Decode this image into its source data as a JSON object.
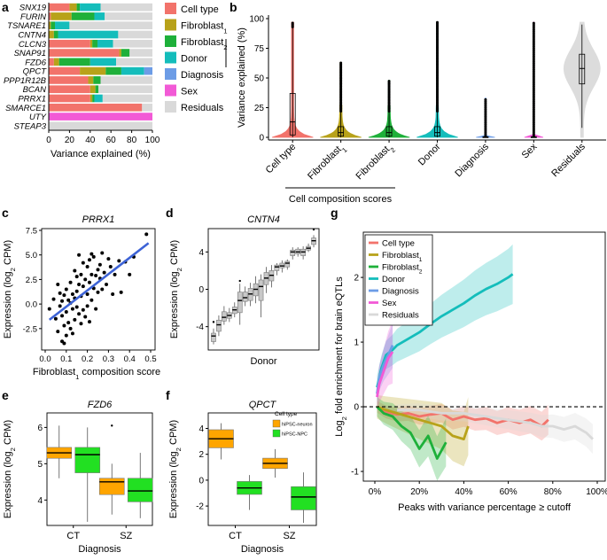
{
  "colors": {
    "cell_type": "#F2736B",
    "fibroblast1": "#B8A21A",
    "fibroblast2": "#1EB03A",
    "donor": "#14BDBB",
    "diagnosis": "#6C9CE6",
    "sex": "#F25AD6",
    "residuals": "#D9D9D9",
    "regression": "#3D63D6",
    "orange": "#FFA500",
    "green": "#22E022",
    "box_grey": "#C8C8C8"
  },
  "panel_labels": {
    "a": "a",
    "b": "b",
    "c": "c",
    "d": "d",
    "e": "e",
    "f": "f",
    "g": "g"
  },
  "chart_data": [
    {
      "id": "a",
      "type": "bar",
      "stacked": true,
      "orientation": "horizontal",
      "xlabel": "Variance explained (%)",
      "xlim": [
        0,
        100
      ],
      "xticks": [
        "0",
        "20",
        "40",
        "60",
        "80",
        "100"
      ],
      "categories": [
        "SNX19",
        "FURIN",
        "TSNARE1",
        "CNTN4",
        "CLCN3",
        "SNAP91",
        "FZD6",
        "QPCT",
        "PPP1R12B",
        "BCAN",
        "PRRX1",
        "SMARCE1",
        "UTY",
        "STEAP3"
      ],
      "series": [
        {
          "name": "Cell type",
          "key": "cell_type",
          "values": [
            20,
            2,
            0,
            0,
            40,
            68,
            5,
            30,
            38,
            40,
            40,
            90,
            0,
            0
          ]
        },
        {
          "name": "Fibroblast1",
          "key": "fibroblast1",
          "values": [
            7,
            20,
            2,
            5,
            2,
            2,
            5,
            25,
            5,
            5,
            2,
            0,
            0,
            0
          ]
        },
        {
          "name": "Fibroblast2",
          "key": "fibroblast2",
          "values": [
            3,
            22,
            4,
            4,
            5,
            8,
            30,
            15,
            7,
            3,
            2,
            0,
            0,
            0
          ]
        },
        {
          "name": "Donor",
          "key": "donor",
          "values": [
            20,
            10,
            14,
            58,
            15,
            0,
            25,
            22,
            0,
            0,
            8,
            0,
            0,
            0
          ]
        },
        {
          "name": "Diagnosis",
          "key": "diagnosis",
          "values": [
            0,
            0,
            0,
            0,
            0,
            0,
            0,
            8,
            0,
            0,
            0,
            0,
            0,
            0
          ]
        },
        {
          "name": "Sex",
          "key": "sex",
          "values": [
            0,
            0,
            0,
            0,
            0,
            0,
            0,
            0,
            0,
            0,
            0,
            0,
            100,
            0
          ]
        },
        {
          "name": "Residuals",
          "key": "residuals",
          "values": [
            50,
            46,
            80,
            33,
            38,
            22,
            35,
            0,
            50,
            52,
            48,
            10,
            0,
            100
          ]
        }
      ],
      "legend_position": "right",
      "legend": [
        {
          "label": "Cell type",
          "key": "cell_type"
        },
        {
          "label": "Fibroblast",
          "sub": "1",
          "key": "fibroblast1"
        },
        {
          "label": "Fibroblast",
          "sub": "2",
          "key": "fibroblast2"
        },
        {
          "label": "Donor",
          "key": "donor"
        },
        {
          "label": "Diagnosis",
          "key": "diagnosis"
        },
        {
          "label": "Sex",
          "key": "sex"
        },
        {
          "label": "Residuals",
          "key": "residuals"
        }
      ]
    },
    {
      "id": "b",
      "type": "violin",
      "ylabel": "Variance explained (%)",
      "ylim": [
        0,
        100
      ],
      "yticks": [
        "0",
        "25",
        "50",
        "75",
        "100"
      ],
      "xgroup_label": "Cell composition scores",
      "groups": [
        {
          "label": "Cell type",
          "key": "cell_type",
          "median": 13,
          "q1": 2,
          "q3": 37,
          "whisker_hi": 93,
          "max": 97,
          "shape": "skew"
        },
        {
          "label": "Fibroblast",
          "sub": "1",
          "key": "fibroblast1",
          "median": 4,
          "q1": 1,
          "q3": 9,
          "whisker_hi": 22,
          "max": 63,
          "shape": "skew"
        },
        {
          "label": "Fibroblast",
          "sub": "2",
          "key": "fibroblast2",
          "median": 4,
          "q1": 1,
          "q3": 9,
          "whisker_hi": 22,
          "max": 48,
          "shape": "skew"
        },
        {
          "label": "Donor",
          "key": "donor",
          "median": 4,
          "q1": 1,
          "q3": 9,
          "whisker_hi": 22,
          "max": 97,
          "shape": "skew"
        },
        {
          "label": "Diagnosis",
          "key": "diagnosis",
          "median": 0,
          "q1": 0,
          "q3": 0.5,
          "whisker_hi": 1,
          "max": 33,
          "shape": "thin"
        },
        {
          "label": "Sex",
          "key": "sex",
          "median": 0,
          "q1": 0,
          "q3": 0.5,
          "whisker_hi": 1,
          "max": 97,
          "shape": "thin"
        },
        {
          "label": "Residuals",
          "key": "residuals",
          "median": 58,
          "q1": 45,
          "q3": 70,
          "whisker_hi": 95,
          "whisker_lo": 8,
          "max": 97,
          "shape": "wide"
        }
      ]
    },
    {
      "id": "c",
      "type": "scatter",
      "title": "PRRX1",
      "xlabel": "Fibroblast",
      "xlabel_sub": "1",
      "xlabel_rest": " composition score",
      "ylabel": "Expression (log",
      "ylabel_sub": "2",
      "ylabel_rest": " CPM)",
      "xlim": [
        0,
        0.5
      ],
      "ylim": [
        -4.5,
        7.5
      ],
      "xticks": [
        "0.0",
        "0.1",
        "0.2",
        "0.3",
        "0.4",
        "0.5"
      ],
      "yticks": [
        "-2.5",
        "0.0",
        "2.5",
        "5.0",
        "7.5"
      ],
      "regression": {
        "x": [
          0.02,
          0.49
        ],
        "y": [
          -1.6,
          6.2
        ]
      },
      "points": [
        [
          0.02,
          -0.5
        ],
        [
          0.04,
          0.5
        ],
        [
          0.05,
          -1.5
        ],
        [
          0.06,
          2.0
        ],
        [
          0.06,
          -2.8
        ],
        [
          0.07,
          1.1
        ],
        [
          0.07,
          -0.2
        ],
        [
          0.08,
          0.3
        ],
        [
          0.08,
          -1.2
        ],
        [
          0.08,
          -3.8
        ],
        [
          0.09,
          0.9
        ],
        [
          0.09,
          -2.2
        ],
        [
          0.09,
          -4.0
        ],
        [
          0.1,
          1.5
        ],
        [
          0.1,
          -0.8
        ],
        [
          0.1,
          -3.2
        ],
        [
          0.11,
          0.4
        ],
        [
          0.11,
          -1.9
        ],
        [
          0.12,
          2.2
        ],
        [
          0.12,
          0.1
        ],
        [
          0.12,
          -2.5
        ],
        [
          0.13,
          1.0
        ],
        [
          0.13,
          -0.5
        ],
        [
          0.13,
          -3.0
        ],
        [
          0.14,
          3.4
        ],
        [
          0.14,
          0.6
        ],
        [
          0.14,
          -1.6
        ],
        [
          0.15,
          2.8
        ],
        [
          0.15,
          1.3
        ],
        [
          0.15,
          -0.3
        ],
        [
          0.16,
          5.0
        ],
        [
          0.16,
          2.0
        ],
        [
          0.16,
          -1.0
        ],
        [
          0.17,
          3.0
        ],
        [
          0.17,
          0.8
        ],
        [
          0.17,
          -2.0
        ],
        [
          0.18,
          4.2
        ],
        [
          0.18,
          1.8
        ],
        [
          0.18,
          -0.6
        ],
        [
          0.19,
          2.5
        ],
        [
          0.19,
          -1.3
        ],
        [
          0.2,
          3.8
        ],
        [
          0.2,
          1.0
        ],
        [
          0.2,
          -0.2
        ],
        [
          0.21,
          4.5
        ],
        [
          0.21,
          2.2
        ],
        [
          0.21,
          -1.8
        ],
        [
          0.22,
          5.1
        ],
        [
          0.22,
          3.0
        ],
        [
          0.22,
          0.4
        ],
        [
          0.23,
          4.8
        ],
        [
          0.23,
          1.6
        ],
        [
          0.24,
          2.9
        ],
        [
          0.24,
          -0.5
        ],
        [
          0.25,
          3.5
        ],
        [
          0.25,
          1.2
        ],
        [
          0.26,
          4.0
        ],
        [
          0.26,
          2.6
        ],
        [
          0.27,
          5.2
        ],
        [
          0.27,
          1.5
        ],
        [
          0.28,
          3.2
        ],
        [
          0.29,
          2.0
        ],
        [
          0.3,
          4.6
        ],
        [
          0.31,
          3.8
        ],
        [
          0.32,
          1.0
        ],
        [
          0.33,
          3.0
        ],
        [
          0.35,
          4.4
        ],
        [
          0.36,
          1.2
        ],
        [
          0.38,
          4.3
        ],
        [
          0.4,
          3.0
        ],
        [
          0.42,
          4.8
        ],
        [
          0.48,
          7.1
        ]
      ]
    },
    {
      "id": "d",
      "type": "box",
      "title": "CNTN4",
      "xlabel": "Donor",
      "ylabel": "Expression (log",
      "ylabel_sub": "2",
      "ylabel_rest": " CPM)",
      "ylim": [
        -6.5,
        6.5
      ],
      "yticks": [
        "-4",
        "0",
        "4"
      ],
      "boxes": [
        [
          -5.9,
          -5.6,
          -5.0,
          -4.7,
          -4.2
        ],
        [
          -5.0,
          -4.5,
          -3.8,
          -3.3,
          -2.8
        ],
        [
          -3.8,
          -3.4,
          -3.0,
          -2.4,
          -1.8
        ],
        [
          -3.5,
          -3.1,
          -2.8,
          -2.5,
          -2.0
        ],
        [
          -3.0,
          -2.6,
          -2.2,
          -1.9,
          -1.4
        ],
        [
          -3.8,
          -2.5,
          -1.2,
          -0.3,
          0.6
        ],
        [
          -1.8,
          -1.3,
          -0.9,
          -0.3,
          0.3
        ],
        [
          -1.8,
          -1.2,
          -0.5,
          0.1,
          0.7
        ],
        [
          -1.5,
          -0.7,
          0.0,
          0.6,
          1.4
        ],
        [
          -3.0,
          -1.2,
          0.3,
          1.0,
          1.6
        ],
        [
          -0.4,
          0.5,
          1.2,
          1.8,
          2.4
        ],
        [
          0.2,
          0.9,
          1.5,
          2.0,
          2.6
        ],
        [
          1.5,
          2.0,
          2.4,
          2.6,
          2.8
        ],
        [
          1.8,
          2.3,
          2.5,
          2.8,
          3.1
        ],
        [
          2.1,
          2.4,
          2.8,
          3.0,
          3.2
        ],
        [
          3.2,
          3.6,
          4.0,
          4.2,
          4.5
        ],
        [
          3.5,
          3.8,
          4.0,
          4.3,
          4.5
        ],
        [
          3.2,
          3.6,
          4.0,
          4.3,
          4.6
        ],
        [
          4.0,
          4.2,
          4.4,
          4.6,
          4.9
        ],
        [
          4.5,
          4.8,
          5.2,
          5.5,
          5.8
        ]
      ],
      "outliers": [
        [
          0,
          -3.5
        ],
        [
          5,
          0.9
        ],
        [
          19,
          6.4
        ]
      ]
    },
    {
      "id": "e",
      "type": "box",
      "title": "FZD6",
      "xlabel": "Diagnosis",
      "ylabel": "Expression (log",
      "ylabel_sub": "2",
      "ylabel_rest": " CPM)",
      "ylim": [
        3.3,
        6.4
      ],
      "yticks": [
        "4",
        "5",
        "6"
      ],
      "categories": [
        "CT",
        "SZ"
      ],
      "series": [
        {
          "name": "hiPSC-neuron",
          "key": "orange",
          "stats": [
            [
              4.6,
              5.15,
              5.3,
              5.45,
              6.05
            ],
            [
              3.6,
              4.15,
              4.5,
              4.6,
              5.0
            ]
          ]
        },
        {
          "name": "hiPSC-NPC",
          "key": "green",
          "stats": [
            [
              3.4,
              4.75,
              5.25,
              5.45,
              6.0
            ],
            [
              3.5,
              3.95,
              4.25,
              4.6,
              5.3
            ]
          ]
        }
      ],
      "outliers": [
        [
          1,
          0,
          6.05
        ]
      ]
    },
    {
      "id": "f",
      "type": "box",
      "title": "QPCT",
      "xlabel": "Diagnosis",
      "ylabel": "Expression (log",
      "ylabel_sub": "2",
      "ylabel_rest": " CPM)",
      "ylim": [
        -3.5,
        5.2
      ],
      "yticks": [
        "-2",
        "0",
        "2",
        "4"
      ],
      "categories": [
        "CT",
        "SZ"
      ],
      "legend_title": "Cell type",
      "legend_position": "top-right",
      "series": [
        {
          "name": "hiPSC-neuron",
          "key": "orange",
          "stats": [
            [
              1.6,
              2.5,
              3.2,
              3.9,
              4.4
            ],
            [
              0.2,
              0.9,
              1.3,
              1.7,
              2.4
            ]
          ]
        },
        {
          "name": "hiPSC-NPC",
          "key": "green",
          "stats": [
            [
              -2.3,
              -1.1,
              -0.6,
              -0.1,
              0.4
            ],
            [
              -3.3,
              -2.3,
              -1.3,
              -0.5,
              0.6
            ]
          ]
        }
      ]
    },
    {
      "id": "g",
      "type": "line",
      "xlabel": "Peaks with variance percentage ≥ cutoff",
      "ylabel": "Log",
      "ylabel_sub": "2",
      "ylabel_rest": " fold enrichment for brain eQTLs",
      "xlim": [
        0,
        1
      ],
      "ylim": [
        -1.15,
        2.7
      ],
      "xticks": [
        "0%",
        "20%",
        "40%",
        "60%",
        "80%",
        "100%"
      ],
      "yticks": [
        "-1",
        "0",
        "1",
        "2"
      ],
      "legend_position": "top-left",
      "series": [
        {
          "name": "Cell type",
          "key": "cell_type",
          "x": [
            0.01,
            0.05,
            0.1,
            0.15,
            0.2,
            0.25,
            0.3,
            0.35,
            0.4,
            0.45,
            0.5,
            0.55,
            0.6,
            0.65,
            0.7,
            0.75,
            0.78
          ],
          "y": [
            0,
            -0.08,
            -0.12,
            -0.1,
            -0.15,
            -0.12,
            -0.1,
            -0.2,
            -0.15,
            -0.2,
            -0.18,
            -0.25,
            -0.2,
            -0.25,
            -0.2,
            -0.3,
            -0.2
          ],
          "band": 0.15
        },
        {
          "name": "Fibroblast",
          "sub": "1",
          "key": "fibroblast1",
          "x": [
            0.01,
            0.05,
            0.1,
            0.15,
            0.2,
            0.25,
            0.3,
            0.35,
            0.4,
            0.42
          ],
          "y": [
            0,
            -0.05,
            -0.1,
            -0.15,
            -0.2,
            -0.25,
            -0.3,
            -0.45,
            -0.5,
            -0.3
          ],
          "band": 0.3
        },
        {
          "name": "Fibroblast",
          "sub": "2",
          "key": "fibroblast2",
          "x": [
            0.01,
            0.04,
            0.08,
            0.12,
            0.16,
            0.2,
            0.24,
            0.28,
            0.32
          ],
          "y": [
            0,
            -0.1,
            -0.15,
            -0.3,
            -0.4,
            -0.65,
            -0.45,
            -0.8,
            -0.55
          ],
          "band": 0.25
        },
        {
          "name": "Donor",
          "key": "donor",
          "x": [
            0.01,
            0.03,
            0.05,
            0.08,
            0.1,
            0.15,
            0.2,
            0.25,
            0.3,
            0.35,
            0.4,
            0.45,
            0.5,
            0.55,
            0.6,
            0.62
          ],
          "y": [
            0.3,
            0.6,
            0.8,
            0.88,
            0.95,
            1.05,
            1.15,
            1.28,
            1.4,
            1.5,
            1.6,
            1.72,
            1.82,
            1.9,
            2.0,
            2.05
          ],
          "band": 0.3
        },
        {
          "name": "Diagnosis",
          "key": "diagnosis",
          "x": [
            0.01,
            0.02,
            0.04,
            0.06,
            0.08
          ],
          "y": [
            0.2,
            0.45,
            0.65,
            0.8,
            0.95
          ],
          "band": 0.25
        },
        {
          "name": "Sex",
          "key": "sex",
          "x": [
            0.01,
            0.02,
            0.04,
            0.06,
            0.08
          ],
          "y": [
            0.15,
            0.35,
            0.55,
            0.75,
            0.85
          ],
          "band": 0.35
        },
        {
          "name": "Residuals",
          "key": "residuals",
          "x": [
            0.1,
            0.2,
            0.3,
            0.4,
            0.5,
            0.6,
            0.7,
            0.75,
            0.8,
            0.85,
            0.9,
            0.95,
            0.98
          ],
          "y": [
            -0.05,
            -0.05,
            -0.1,
            -0.1,
            -0.15,
            -0.2,
            -0.25,
            -0.3,
            -0.3,
            -0.35,
            -0.3,
            -0.4,
            -0.5
          ],
          "band": 0.15
        }
      ],
      "reference_line": 0
    }
  ]
}
